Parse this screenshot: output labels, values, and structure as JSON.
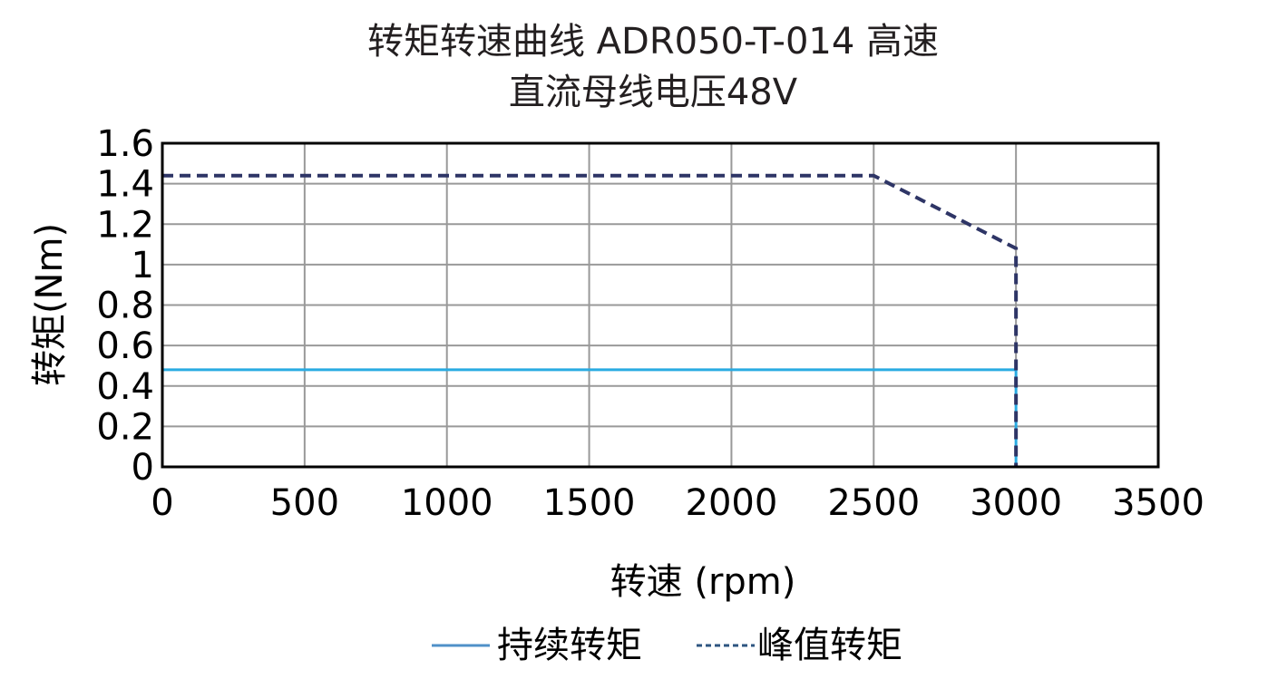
{
  "title": {
    "line1": "转矩转速曲线  ADR050-T-014 高速",
    "line2": "直流母线电压48V"
  },
  "axes": {
    "xlabel": "转速 (rpm)",
    "ylabel": "转矩(Nm)",
    "xticks": [
      "0",
      "500",
      "1000",
      "1500",
      "2000",
      "2500",
      "3000",
      "3500"
    ],
    "yticks": [
      "0",
      "0.2",
      "0.4",
      "0.6",
      "0.8",
      "1",
      "1.2",
      "1.4",
      "1.6"
    ]
  },
  "legend": {
    "continuous": "持续转矩",
    "peak": "峰值转矩"
  },
  "colors": {
    "continuous": "#29abe2",
    "peak": "#2e3566",
    "grid": "#999999"
  },
  "chart_data": {
    "type": "line",
    "title": "转矩转速曲线  ADR050-T-014 高速 直流母线电压48V",
    "xlabel": "转速 (rpm)",
    "ylabel": "转矩(Nm)",
    "xlim": [
      0,
      3500
    ],
    "ylim": [
      0,
      1.6
    ],
    "grid": true,
    "legend_position": "bottom",
    "series": [
      {
        "name": "持续转矩",
        "style": "solid",
        "color": "#29abe2",
        "x": [
          0,
          3000,
          3000
        ],
        "y": [
          0.48,
          0.48,
          0
        ]
      },
      {
        "name": "峰值转矩",
        "style": "dashed",
        "color": "#2e3566",
        "x": [
          0,
          2500,
          3000,
          3000
        ],
        "y": [
          1.44,
          1.44,
          1.08,
          0
        ]
      }
    ]
  }
}
